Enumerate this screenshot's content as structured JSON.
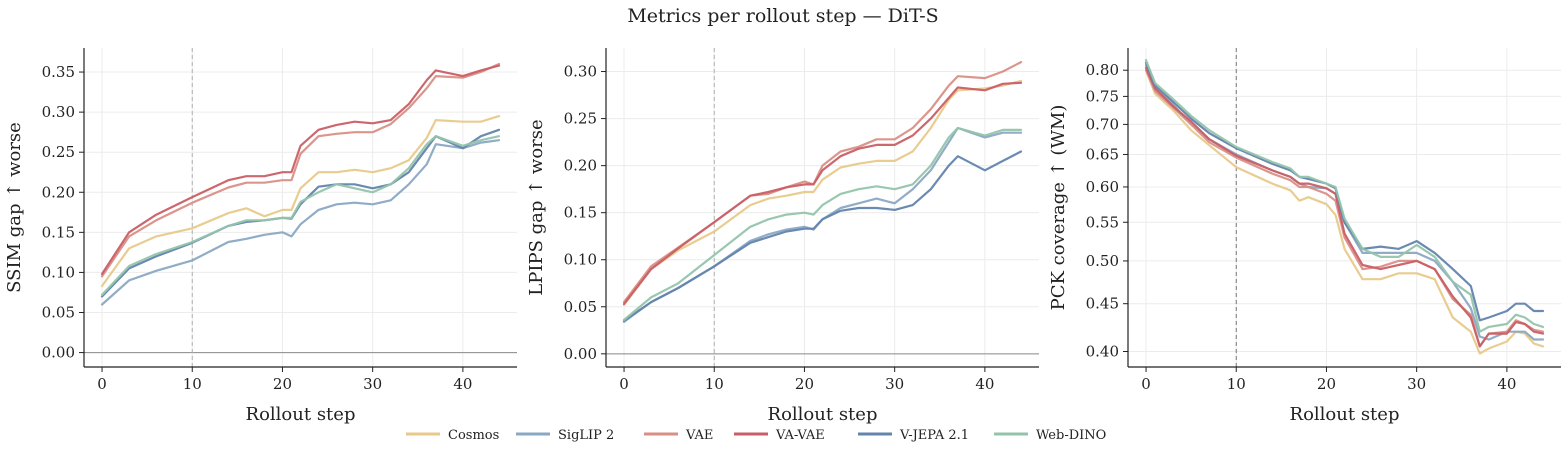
{
  "figure": {
    "title": "Metrics per rollout step — DiT-S"
  },
  "colors": {
    "Cosmos": "#e8c98a",
    "SigLIP 2": "#8aa8c4",
    "VAE": "#d98f86",
    "VA-VAE": "#c95f66",
    "V-JEPA 2.1": "#6384ad",
    "Web-DINO": "#93c4ab"
  },
  "legend": [
    "Cosmos",
    "SigLIP 2",
    "VAE",
    "VA-VAE",
    "V-JEPA 2.1",
    "Web-DINO"
  ],
  "chart_data": [
    {
      "type": "line",
      "ylabel": "SSIM gap ↑ worse",
      "xlabel": "Rollout step",
      "xlim": [
        -2,
        46
      ],
      "ylim": [
        -0.018,
        0.38
      ],
      "xticks": [
        0,
        10,
        20,
        30,
        40
      ],
      "yticks": [
        0.0,
        0.05,
        0.1,
        0.15,
        0.2,
        0.25,
        0.3,
        0.35
      ],
      "ytick_labels": [
        "0.00",
        "0.05",
        "0.10",
        "0.15",
        "0.20",
        "0.25",
        "0.30",
        "0.35"
      ],
      "vline": 10,
      "hline": 0,
      "series": [
        {
          "name": "Cosmos",
          "x": [
            0,
            3,
            6,
            10,
            14,
            16,
            18,
            20,
            21,
            22,
            24,
            26,
            28,
            30,
            32,
            34,
            36,
            37,
            40,
            42,
            44
          ],
          "y": [
            0.083,
            0.13,
            0.145,
            0.155,
            0.174,
            0.18,
            0.17,
            0.178,
            0.178,
            0.205,
            0.225,
            0.225,
            0.228,
            0.225,
            0.23,
            0.24,
            0.268,
            0.29,
            0.288,
            0.288,
            0.295
          ]
        },
        {
          "name": "SigLIP 2",
          "x": [
            0,
            3,
            6,
            10,
            14,
            16,
            18,
            20,
            21,
            22,
            24,
            26,
            28,
            30,
            32,
            34,
            36,
            37,
            40,
            42,
            44
          ],
          "y": [
            0.06,
            0.09,
            0.102,
            0.115,
            0.138,
            0.142,
            0.147,
            0.15,
            0.145,
            0.16,
            0.178,
            0.185,
            0.187,
            0.185,
            0.19,
            0.21,
            0.235,
            0.26,
            0.255,
            0.262,
            0.265
          ]
        },
        {
          "name": "VAE",
          "x": [
            0,
            3,
            6,
            10,
            14,
            16,
            18,
            20,
            21,
            22,
            24,
            26,
            28,
            30,
            32,
            34,
            36,
            37,
            40,
            42,
            44
          ],
          "y": [
            0.095,
            0.145,
            0.165,
            0.187,
            0.206,
            0.212,
            0.212,
            0.215,
            0.215,
            0.248,
            0.27,
            0.273,
            0.275,
            0.275,
            0.285,
            0.305,
            0.33,
            0.345,
            0.343,
            0.35,
            0.36
          ]
        },
        {
          "name": "VA-VAE",
          "x": [
            0,
            3,
            6,
            10,
            14,
            16,
            18,
            20,
            21,
            22,
            24,
            26,
            28,
            30,
            32,
            34,
            36,
            37,
            40,
            42,
            44
          ],
          "y": [
            0.098,
            0.15,
            0.172,
            0.194,
            0.215,
            0.22,
            0.22,
            0.225,
            0.225,
            0.258,
            0.278,
            0.284,
            0.288,
            0.286,
            0.29,
            0.31,
            0.34,
            0.352,
            0.345,
            0.352,
            0.358
          ]
        },
        {
          "name": "V-JEPA 2.1",
          "x": [
            0,
            3,
            6,
            10,
            14,
            16,
            18,
            20,
            21,
            22,
            24,
            26,
            28,
            30,
            32,
            34,
            36,
            37,
            40,
            42,
            44
          ],
          "y": [
            0.07,
            0.105,
            0.12,
            0.137,
            0.158,
            0.163,
            0.165,
            0.168,
            0.167,
            0.185,
            0.207,
            0.21,
            0.21,
            0.205,
            0.21,
            0.225,
            0.255,
            0.27,
            0.255,
            0.27,
            0.278
          ]
        },
        {
          "name": "Web-DINO",
          "x": [
            0,
            3,
            6,
            10,
            14,
            16,
            18,
            20,
            21,
            22,
            24,
            26,
            28,
            30,
            32,
            34,
            36,
            37,
            40,
            42,
            44
          ],
          "y": [
            0.072,
            0.108,
            0.123,
            0.138,
            0.158,
            0.165,
            0.165,
            0.168,
            0.168,
            0.188,
            0.2,
            0.21,
            0.205,
            0.2,
            0.21,
            0.23,
            0.26,
            0.27,
            0.258,
            0.265,
            0.27
          ]
        }
      ]
    },
    {
      "type": "line",
      "ylabel": "LPIPS gap ↑ worse",
      "xlabel": "Rollout step",
      "xlim": [
        -2,
        46
      ],
      "ylim": [
        -0.014,
        0.325
      ],
      "xticks": [
        0,
        10,
        20,
        30,
        40
      ],
      "yticks": [
        0.0,
        0.05,
        0.1,
        0.15,
        0.2,
        0.25,
        0.3
      ],
      "ytick_labels": [
        "0.00",
        "0.05",
        "0.10",
        "0.15",
        "0.20",
        "0.25",
        "0.30"
      ],
      "vline": 10,
      "hline": 0,
      "series": [
        {
          "name": "Cosmos",
          "x": [
            0,
            3,
            6,
            10,
            14,
            16,
            18,
            20,
            21,
            22,
            24,
            26,
            28,
            30,
            32,
            34,
            36,
            37,
            40,
            42,
            44
          ],
          "y": [
            0.052,
            0.09,
            0.11,
            0.13,
            0.158,
            0.165,
            0.168,
            0.172,
            0.172,
            0.185,
            0.198,
            0.202,
            0.205,
            0.205,
            0.215,
            0.24,
            0.27,
            0.28,
            0.282,
            0.285,
            0.29
          ]
        },
        {
          "name": "SigLIP 2",
          "x": [
            0,
            3,
            6,
            10,
            14,
            16,
            18,
            20,
            21,
            22,
            24,
            26,
            28,
            30,
            32,
            34,
            36,
            37,
            40,
            42,
            44
          ],
          "y": [
            0.034,
            0.055,
            0.07,
            0.093,
            0.12,
            0.127,
            0.132,
            0.135,
            0.132,
            0.143,
            0.155,
            0.16,
            0.165,
            0.16,
            0.175,
            0.195,
            0.225,
            0.24,
            0.23,
            0.235,
            0.235
          ]
        },
        {
          "name": "VAE",
          "x": [
            0,
            3,
            6,
            10,
            14,
            16,
            18,
            20,
            21,
            22,
            24,
            26,
            28,
            30,
            32,
            34,
            36,
            37,
            40,
            42,
            44
          ],
          "y": [
            0.055,
            0.093,
            0.113,
            0.14,
            0.168,
            0.17,
            0.177,
            0.183,
            0.18,
            0.2,
            0.215,
            0.22,
            0.228,
            0.228,
            0.24,
            0.26,
            0.285,
            0.295,
            0.293,
            0.3,
            0.31
          ]
        },
        {
          "name": "VA-VAE",
          "x": [
            0,
            3,
            6,
            10,
            14,
            16,
            18,
            20,
            21,
            22,
            24,
            26,
            28,
            30,
            32,
            34,
            36,
            37,
            40,
            42,
            44
          ],
          "y": [
            0.053,
            0.09,
            0.112,
            0.14,
            0.168,
            0.172,
            0.177,
            0.18,
            0.18,
            0.195,
            0.21,
            0.218,
            0.222,
            0.222,
            0.232,
            0.25,
            0.272,
            0.283,
            0.28,
            0.287,
            0.288
          ]
        },
        {
          "name": "V-JEPA 2.1",
          "x": [
            0,
            3,
            6,
            10,
            14,
            16,
            18,
            20,
            21,
            22,
            24,
            26,
            28,
            30,
            32,
            34,
            36,
            37,
            40,
            42,
            44
          ],
          "y": [
            0.035,
            0.055,
            0.07,
            0.093,
            0.118,
            0.124,
            0.13,
            0.133,
            0.133,
            0.143,
            0.152,
            0.155,
            0.155,
            0.153,
            0.158,
            0.175,
            0.2,
            0.21,
            0.195,
            0.205,
            0.215
          ]
        },
        {
          "name": "Web-DINO",
          "x": [
            0,
            3,
            6,
            10,
            14,
            16,
            18,
            20,
            21,
            22,
            24,
            26,
            28,
            30,
            32,
            34,
            36,
            37,
            40,
            42,
            44
          ],
          "y": [
            0.036,
            0.06,
            0.075,
            0.105,
            0.135,
            0.143,
            0.148,
            0.15,
            0.148,
            0.158,
            0.17,
            0.175,
            0.178,
            0.175,
            0.18,
            0.2,
            0.23,
            0.24,
            0.232,
            0.238,
            0.238
          ]
        }
      ]
    },
    {
      "type": "line",
      "ylabel": "PCK coverage ↑ (WM)",
      "xlabel": "Rollout step",
      "xlim": [
        -2,
        46
      ],
      "ylim": [
        0.385,
        0.845
      ],
      "yscale": "log",
      "xticks": [
        0,
        10,
        20,
        30,
        40
      ],
      "yticks": [
        0.4,
        0.45,
        0.5,
        0.55,
        0.6,
        0.65,
        0.7,
        0.75,
        0.8
      ],
      "ytick_labels": [
        "0.40",
        "0.45",
        "0.50",
        "0.55",
        "0.60",
        "0.65",
        "0.70",
        "0.75",
        "0.80"
      ],
      "vline": 10,
      "series": [
        {
          "name": "Cosmos",
          "x": [
            0,
            1,
            3,
            5,
            7,
            10,
            14,
            16,
            17,
            18,
            20,
            21,
            22,
            24,
            26,
            28,
            30,
            32,
            34,
            36,
            37,
            38,
            40,
            41,
            42,
            43,
            44
          ],
          "y": [
            0.8,
            0.755,
            0.725,
            0.69,
            0.665,
            0.63,
            0.605,
            0.595,
            0.58,
            0.585,
            0.575,
            0.56,
            0.515,
            0.478,
            0.478,
            0.485,
            0.485,
            0.478,
            0.435,
            0.42,
            0.398,
            0.403,
            0.41,
            0.42,
            0.418,
            0.408,
            0.405
          ]
        },
        {
          "name": "SigLIP 2",
          "x": [
            0,
            1,
            3,
            5,
            7,
            10,
            14,
            16,
            17,
            18,
            20,
            21,
            22,
            24,
            26,
            28,
            30,
            32,
            34,
            36,
            37,
            38,
            40,
            41,
            42,
            43,
            44
          ],
          "y": [
            0.81,
            0.765,
            0.735,
            0.7,
            0.675,
            0.65,
            0.625,
            0.615,
            0.605,
            0.6,
            0.598,
            0.59,
            0.55,
            0.51,
            0.51,
            0.51,
            0.51,
            0.5,
            0.475,
            0.445,
            0.415,
            0.412,
            0.42,
            0.42,
            0.42,
            0.412,
            0.412
          ]
        },
        {
          "name": "VAE",
          "x": [
            0,
            1,
            3,
            5,
            7,
            10,
            14,
            16,
            17,
            18,
            20,
            21,
            22,
            24,
            26,
            28,
            30,
            32,
            34,
            36,
            37,
            38,
            40,
            41,
            42,
            43,
            44
          ],
          "y": [
            0.8,
            0.76,
            0.73,
            0.7,
            0.67,
            0.645,
            0.62,
            0.61,
            0.6,
            0.6,
            0.59,
            0.58,
            0.53,
            0.49,
            0.493,
            0.5,
            0.5,
            0.49,
            0.455,
            0.438,
            0.405,
            0.418,
            0.42,
            0.432,
            0.428,
            0.422,
            0.42
          ]
        },
        {
          "name": "VA-VAE",
          "x": [
            0,
            1,
            3,
            5,
            7,
            10,
            14,
            16,
            17,
            18,
            20,
            21,
            22,
            24,
            26,
            28,
            30,
            32,
            34,
            36,
            37,
            38,
            40,
            41,
            42,
            43,
            44
          ],
          "y": [
            0.805,
            0.765,
            0.732,
            0.705,
            0.675,
            0.648,
            0.625,
            0.615,
            0.605,
            0.605,
            0.598,
            0.59,
            0.535,
            0.495,
            0.49,
            0.495,
            0.5,
            0.49,
            0.458,
            0.435,
            0.405,
            0.418,
            0.418,
            0.43,
            0.428,
            0.42,
            0.418
          ]
        },
        {
          "name": "V-JEPA 2.1",
          "x": [
            0,
            1,
            3,
            5,
            7,
            10,
            14,
            16,
            17,
            18,
            20,
            21,
            22,
            24,
            26,
            28,
            30,
            32,
            34,
            36,
            37,
            38,
            40,
            41,
            42,
            43,
            44
          ],
          "y": [
            0.815,
            0.77,
            0.74,
            0.71,
            0.685,
            0.66,
            0.635,
            0.625,
            0.615,
            0.612,
            0.605,
            0.598,
            0.55,
            0.515,
            0.518,
            0.515,
            0.525,
            0.51,
            0.49,
            0.47,
            0.432,
            0.435,
            0.442,
            0.45,
            0.45,
            0.442,
            0.442
          ]
        },
        {
          "name": "Web-DINO",
          "x": [
            0,
            1,
            3,
            5,
            7,
            10,
            14,
            16,
            17,
            18,
            20,
            21,
            22,
            24,
            26,
            28,
            30,
            32,
            34,
            36,
            37,
            38,
            40,
            41,
            42,
            43,
            44
          ],
          "y": [
            0.82,
            0.775,
            0.745,
            0.715,
            0.69,
            0.662,
            0.638,
            0.628,
            0.615,
            0.615,
            0.605,
            0.6,
            0.555,
            0.515,
            0.505,
            0.505,
            0.52,
            0.505,
            0.475,
            0.46,
            0.42,
            0.425,
            0.428,
            0.438,
            0.435,
            0.428,
            0.425
          ]
        }
      ]
    }
  ]
}
